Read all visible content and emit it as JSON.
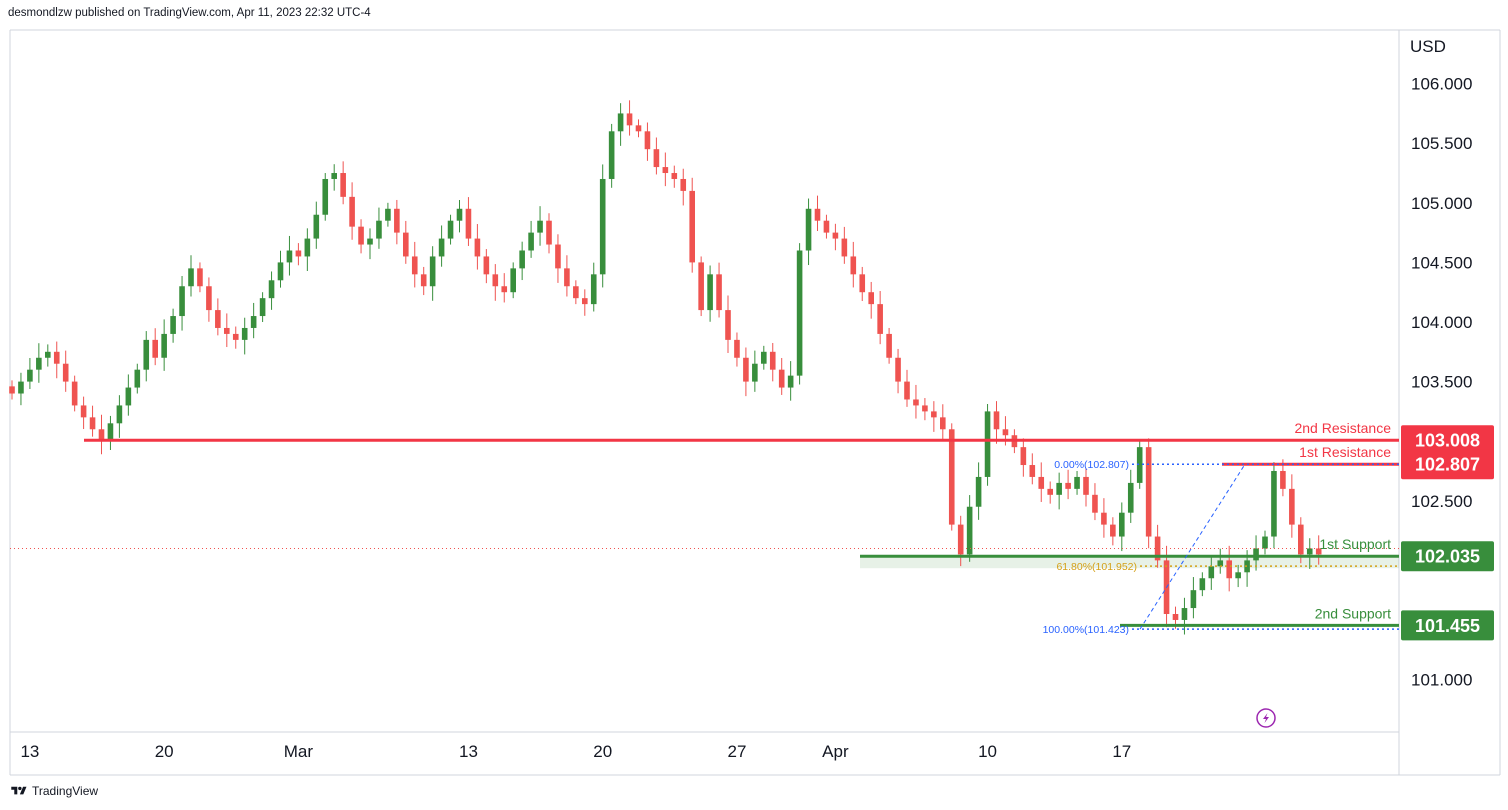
{
  "header": {
    "publisher": "desmondlzw published on TradingView.com, Apr 11, 2023 22:32 UTC-4"
  },
  "footer": {
    "brand": "TradingView"
  },
  "colors": {
    "up": "#388e3c",
    "down": "#ef5350",
    "resistance": "#f23645",
    "support": "#388e3c",
    "fib_line": "#2962ff",
    "fib_618": "#d4a017",
    "lightning": "#9c27b0"
  },
  "chart_data": {
    "type": "candlestick",
    "currency": "USD",
    "ylim": [
      100.56,
      106.45
    ],
    "y_ticks": [
      "106.000",
      "105.500",
      "105.000",
      "104.500",
      "104.000",
      "103.500",
      "102.500",
      "101.000"
    ],
    "x_ticks": [
      {
        "label": "13",
        "index": 2
      },
      {
        "label": "20",
        "index": 17
      },
      {
        "label": "Mar",
        "index": 32
      },
      {
        "label": "13",
        "index": 51
      },
      {
        "label": "20",
        "index": 66
      },
      {
        "label": "27",
        "index": 81
      },
      {
        "label": "Apr",
        "index": 92
      },
      {
        "label": "10",
        "index": 109
      },
      {
        "label": "17",
        "index": 124
      }
    ],
    "dates_note": "Hourly-style bars from mid-Feb to Apr 11, 2023 (US Dollar Index)",
    "closes": [
      103.4,
      103.5,
      103.6,
      103.7,
      103.75,
      103.65,
      103.5,
      103.3,
      103.2,
      103.1,
      103.0,
      103.15,
      103.3,
      103.45,
      103.6,
      103.85,
      103.7,
      103.9,
      104.05,
      104.3,
      104.45,
      104.3,
      104.1,
      103.95,
      103.9,
      103.85,
      103.95,
      104.05,
      104.2,
      104.35,
      104.5,
      104.6,
      104.55,
      104.7,
      104.9,
      105.2,
      105.25,
      105.05,
      104.8,
      104.65,
      104.7,
      104.85,
      104.95,
      104.75,
      104.55,
      104.4,
      104.3,
      104.55,
      104.7,
      104.85,
      104.95,
      104.7,
      104.55,
      104.4,
      104.3,
      104.25,
      104.45,
      104.6,
      104.75,
      104.85,
      104.65,
      104.45,
      104.3,
      104.2,
      104.15,
      104.4,
      105.2,
      105.6,
      105.75,
      105.65,
      105.6,
      105.45,
      105.3,
      105.25,
      105.2,
      105.1,
      104.5,
      104.1,
      104.4,
      104.1,
      103.85,
      103.7,
      103.5,
      103.65,
      103.75,
      103.6,
      103.45,
      103.55,
      104.6,
      104.95,
      104.85,
      104.75,
      104.7,
      104.55,
      104.4,
      104.25,
      104.15,
      103.9,
      103.7,
      103.5,
      103.35,
      103.3,
      103.25,
      103.2,
      103.1,
      102.3,
      102.05,
      102.45,
      102.7,
      103.25,
      103.1,
      103.05,
      102.95,
      102.8,
      102.7,
      102.6,
      102.55,
      102.65,
      102.6,
      102.7,
      102.55,
      102.4,
      102.3,
      102.2,
      102.4,
      102.65,
      102.95,
      102.2,
      102.0,
      101.55,
      101.5,
      101.6,
      101.75,
      101.85,
      101.95,
      102.0,
      101.85,
      101.9,
      102.0,
      102.1,
      102.2,
      102.75,
      102.6,
      102.3,
      102.05,
      102.1,
      102.05
    ],
    "series_note": "closes are approximate, estimated from the candle bodies",
    "levels": [
      {
        "name": "2nd Resistance",
        "value": 103.008,
        "label": "103.008",
        "kind": "resistance"
      },
      {
        "name": "1st Resistance",
        "value": 102.807,
        "label": "102.807",
        "kind": "resistance"
      },
      {
        "name": "1st Support",
        "value": 102.035,
        "label": "102.035",
        "kind": "support"
      },
      {
        "name": "2nd Support",
        "value": 101.455,
        "label": "101.455",
        "kind": "support"
      }
    ],
    "fib": [
      {
        "label": "0.00%(102.807)",
        "value": 102.807
      },
      {
        "label": "61.80%(101.952)",
        "value": 101.952
      },
      {
        "label": "100.00%(101.423)",
        "value": 101.423
      }
    ],
    "last_price": 102.1
  }
}
